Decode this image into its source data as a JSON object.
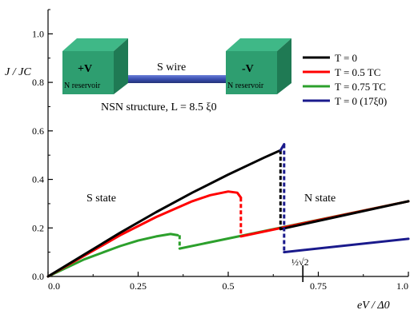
{
  "chart_data": {
    "type": "line",
    "xlabel": "eV / Δ0",
    "ylabel": "J / JC",
    "xlim": [
      0,
      1.0
    ],
    "ylim": [
      0,
      1.1
    ],
    "x_ticks": [
      "0.0",
      "0.25",
      "0.5",
      "0.75",
      "1.0"
    ],
    "y_ticks": [
      "0.0",
      "0.2",
      "0.4",
      "0.6",
      "0.8",
      "1.0"
    ],
    "grid": false,
    "legend_position": "top-right",
    "series": [
      {
        "name": "T = 0",
        "color": "#000000",
        "style": "solid",
        "points": [
          [
            0,
            0
          ],
          [
            0.1,
            0.09
          ],
          [
            0.2,
            0.18
          ],
          [
            0.3,
            0.265
          ],
          [
            0.4,
            0.345
          ],
          [
            0.5,
            0.42
          ],
          [
            0.6,
            0.49
          ],
          [
            0.645,
            0.52
          ]
        ],
        "dashed_drop": [
          [
            0.645,
            0.52
          ],
          [
            0.645,
            0.195
          ]
        ],
        "points_after": [
          [
            0.645,
            0.195
          ],
          [
            1.0,
            0.31
          ]
        ]
      },
      {
        "name": "T = 0.5 TC",
        "color": "#ff0000",
        "style": "solid",
        "points": [
          [
            0,
            0
          ],
          [
            0.1,
            0.085
          ],
          [
            0.2,
            0.17
          ],
          [
            0.3,
            0.245
          ],
          [
            0.4,
            0.31
          ],
          [
            0.45,
            0.335
          ],
          [
            0.5,
            0.35
          ],
          [
            0.525,
            0.345
          ],
          [
            0.535,
            0.325
          ]
        ],
        "dashed_drop": [
          [
            0.535,
            0.325
          ],
          [
            0.535,
            0.165
          ]
        ],
        "points_after": [
          [
            0.535,
            0.165
          ],
          [
            1.0,
            0.31
          ]
        ]
      },
      {
        "name": "T = 0.75 TC",
        "color": "#2ca02c",
        "style": "solid",
        "points": [
          [
            0,
            0
          ],
          [
            0.1,
            0.07
          ],
          [
            0.2,
            0.125
          ],
          [
            0.25,
            0.148
          ],
          [
            0.3,
            0.165
          ],
          [
            0.34,
            0.175
          ],
          [
            0.36,
            0.17
          ]
        ],
        "dashed_drop": [
          [
            0.365,
            0.17
          ],
          [
            0.365,
            0.115
          ]
        ],
        "points_after": [
          [
            0.365,
            0.115
          ],
          [
            1.0,
            0.31
          ]
        ]
      },
      {
        "name": "T = 0 (17ξ0)",
        "color": "#1a1a8c",
        "style": "solid",
        "points": [
          [
            0.645,
            0.52
          ],
          [
            0.655,
            0.545
          ]
        ],
        "dashed_drop": [
          [
            0.655,
            0.545
          ],
          [
            0.655,
            0.1
          ]
        ],
        "points_after": [
          [
            0.655,
            0.1
          ],
          [
            1.0,
            0.155
          ]
        ]
      }
    ],
    "annotations": {
      "s_state": "S state",
      "n_state": "N state",
      "marker_label": "½√2",
      "marker_x": 0.7071,
      "structure_caption": "NSN structure, L = 8.5 ξ0"
    },
    "inset": {
      "left_block_sign": "+V",
      "left_block_label": "N reservoir",
      "right_block_sign": "-V",
      "right_block_label": "N reservoir",
      "wire_label": "S wire",
      "block_color": "#2e9e70",
      "wire_color": "#3a4fb0"
    }
  }
}
